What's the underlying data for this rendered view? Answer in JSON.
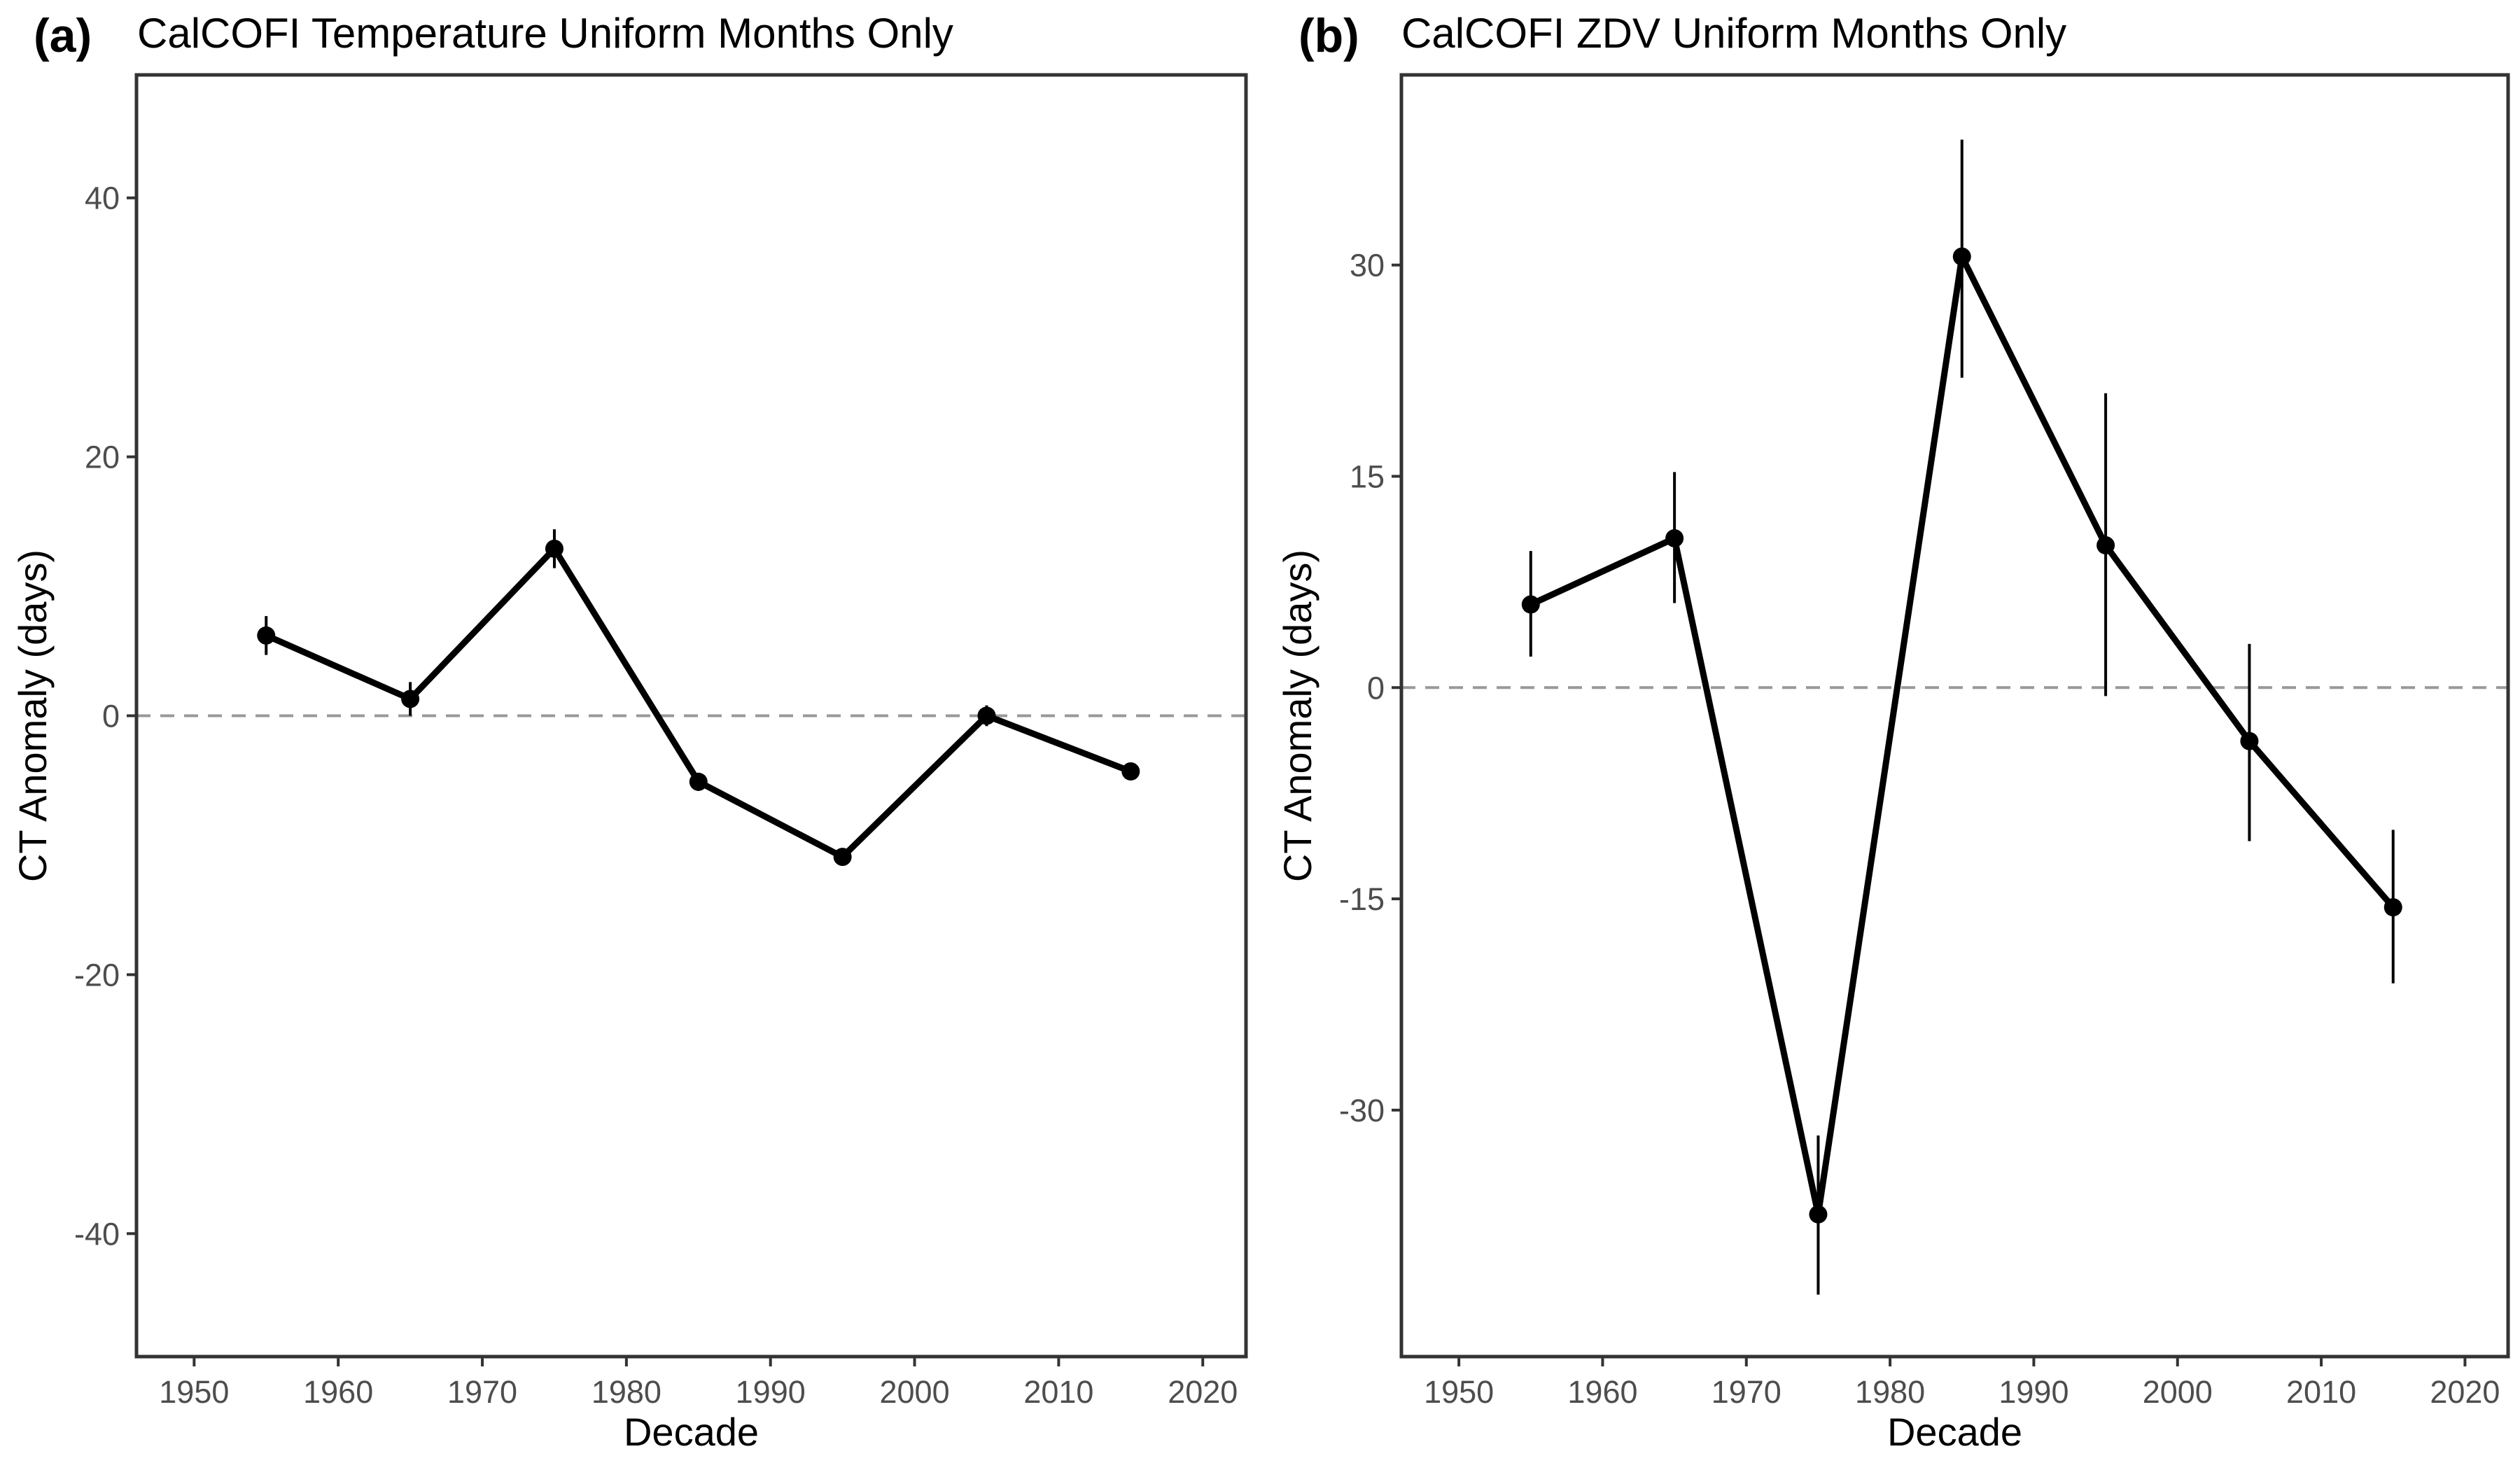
{
  "chart_data": [
    {
      "type": "line",
      "panel_label": "(a)",
      "title": "CalCOFI Temperature Uniform Months Only",
      "xlabel": "Decade",
      "ylabel": "CT Anomaly (days)",
      "xlim": [
        1946,
        2023
      ],
      "ylim": [
        -49.5,
        49.5
      ],
      "x_ticks": [
        1950,
        1960,
        1970,
        1980,
        1990,
        2000,
        2010,
        2020
      ],
      "y_ticks": [
        -40,
        -20,
        0,
        20,
        40
      ],
      "grid": false,
      "reference_line": {
        "y": 0,
        "style": "dashed",
        "color": "#999999"
      },
      "series": [
        {
          "x": [
            1955,
            1965,
            1975,
            1985,
            1995,
            2005,
            2015
          ],
          "y": [
            6.2,
            1.3,
            12.9,
            -5.1,
            -10.9,
            0.0,
            -4.3
          ],
          "error_low": [
            4.7,
            0.0,
            11.4,
            -5.8,
            -11.5,
            -0.8,
            -4.9
          ],
          "error_high": [
            7.7,
            2.6,
            14.4,
            -4.4,
            -10.3,
            0.8,
            -3.7
          ],
          "color": "#000000"
        }
      ]
    },
    {
      "type": "line",
      "panel_label": "(b)",
      "title": "CalCOFI ZDV Uniform Months Only",
      "xlabel": "Decade",
      "ylabel": "CT Anomaly (days)",
      "xlim": [
        1946,
        2023
      ],
      "ylim": [
        -47.5,
        43.5
      ],
      "x_ticks": [
        1950,
        1960,
        1970,
        1980,
        1990,
        2000,
        2010,
        2020
      ],
      "y_ticks": [
        -30,
        -15,
        0,
        15,
        30
      ],
      "grid": false,
      "reference_line": {
        "y": 0,
        "style": "dashed",
        "color": "#999999"
      },
      "series": [
        {
          "x": [
            1955,
            1965,
            1975,
            1985,
            1995,
            2005,
            2015
          ],
          "y": [
            5.9,
            10.6,
            -37.4,
            30.6,
            10.1,
            -3.8,
            -15.6
          ],
          "error_low": [
            2.2,
            6.0,
            -43.1,
            22.0,
            -0.6,
            -10.9,
            -21.0
          ],
          "error_high": [
            9.7,
            15.3,
            -31.8,
            38.9,
            20.9,
            3.1,
            -10.1
          ],
          "color": "#000000"
        }
      ]
    }
  ]
}
